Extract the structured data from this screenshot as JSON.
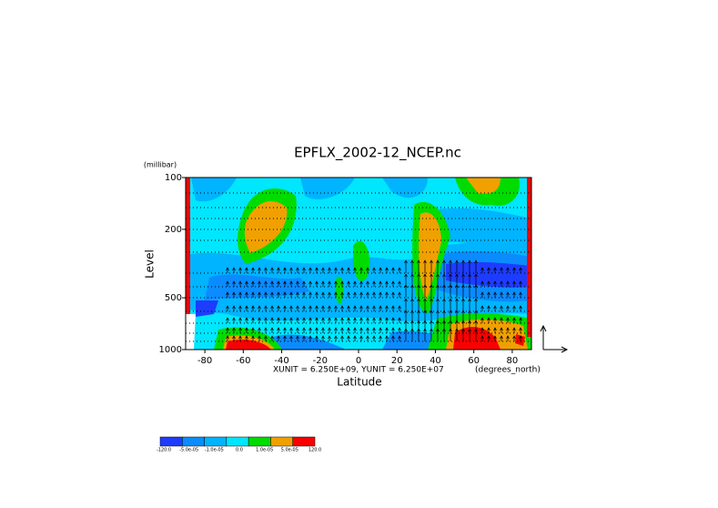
{
  "chart_data": {
    "type": "contour",
    "title": "EPFLX_2002-12_NCEP.nc",
    "x_label": "Latitude",
    "y_label": "Level",
    "y_unit": "(millibar)",
    "x_unit": "(degrees_north)",
    "vector_scale": "XUNIT = 6.250E+09, YUNIT = 6.250E+07",
    "xlim": [
      -90,
      90
    ],
    "xticks": [
      -80,
      -60,
      -40,
      -20,
      0,
      20,
      40,
      60,
      80
    ],
    "ylim": [
      1000,
      100
    ],
    "yticks": [
      100,
      200,
      500,
      1000
    ],
    "log_y": true,
    "colorbar": {
      "colors": [
        "#1e3cff",
        "#0a8cff",
        "#00b4ff",
        "#00e6ff",
        "#00dc00",
        "#f0a000",
        "#fa0000"
      ],
      "ticks": [
        {
          "value": -120,
          "label": "-120.0"
        },
        {
          "value": -5e-05,
          "label": "-5.0e-05"
        },
        {
          "value": -1e-05,
          "label": "-1.0e-05"
        },
        {
          "value": 0,
          "label": "0.0"
        },
        {
          "value": 1e-05,
          "label": "1.0e-05"
        },
        {
          "value": 5e-05,
          "label": "5.0e-05"
        },
        {
          "value": 120,
          "label": "120.0"
        }
      ]
    }
  }
}
